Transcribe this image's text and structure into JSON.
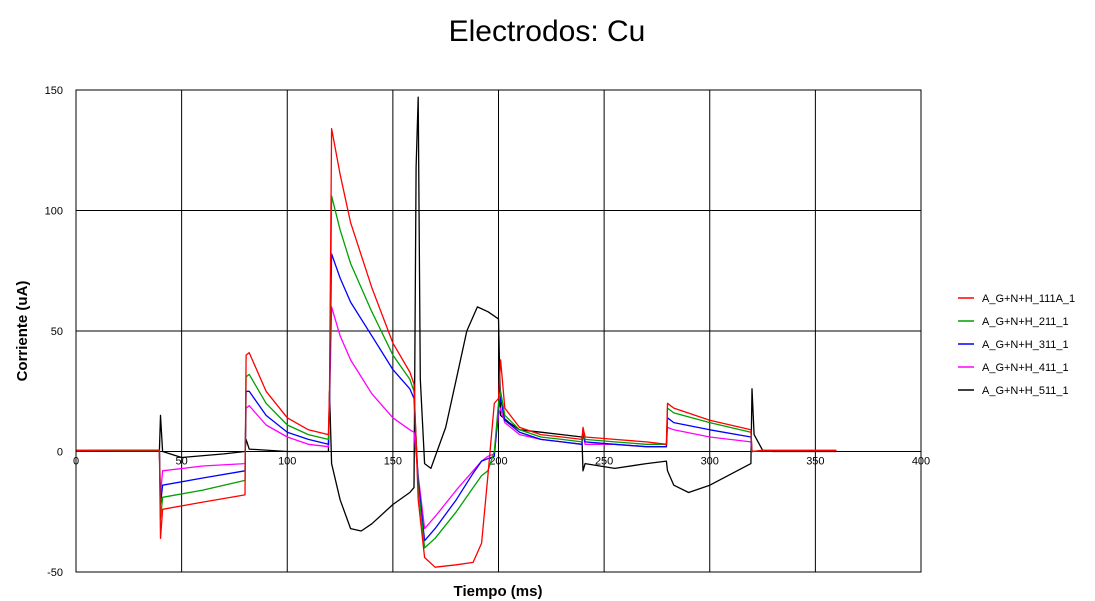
{
  "chart_data": {
    "type": "line",
    "title": "Electrodos: Cu",
    "xlabel": "Tiempo (ms)",
    "ylabel": "Corriente (uA)",
    "xlim": [
      0,
      400
    ],
    "ylim": [
      -50,
      150
    ],
    "xticks": [
      0,
      50,
      100,
      150,
      200,
      250,
      300,
      350,
      400
    ],
    "yticks": [
      -50,
      0,
      50,
      100,
      150
    ],
    "grid": true,
    "legend_position": "right",
    "series": [
      {
        "name": "A_G+N+H_111A_1",
        "color": "#ff0000",
        "points": [
          [
            0,
            0.5
          ],
          [
            20,
            0.6
          ],
          [
            39.5,
            0.6
          ],
          [
            40,
            -36
          ],
          [
            41,
            -24
          ],
          [
            60,
            -21
          ],
          [
            80,
            -18
          ],
          [
            80.5,
            40
          ],
          [
            82,
            41
          ],
          [
            90,
            25
          ],
          [
            100,
            14
          ],
          [
            110,
            9
          ],
          [
            119.5,
            7
          ],
          [
            120,
            25
          ],
          [
            121,
            134
          ],
          [
            125,
            115
          ],
          [
            130,
            95
          ],
          [
            140,
            68
          ],
          [
            150,
            45
          ],
          [
            158,
            33
          ],
          [
            160,
            28
          ],
          [
            162,
            -20
          ],
          [
            165,
            -44
          ],
          [
            170,
            -48
          ],
          [
            180,
            -47
          ],
          [
            188,
            -46
          ],
          [
            192,
            -38
          ],
          [
            195,
            -10
          ],
          [
            198,
            20
          ],
          [
            200,
            22
          ],
          [
            201,
            38
          ],
          [
            203,
            18
          ],
          [
            210,
            10
          ],
          [
            220,
            7
          ],
          [
            230,
            6
          ],
          [
            239.5,
            5
          ],
          [
            240,
            10
          ],
          [
            241,
            6
          ],
          [
            255,
            5
          ],
          [
            270,
            4
          ],
          [
            279.5,
            3
          ],
          [
            280,
            20
          ],
          [
            283,
            18
          ],
          [
            300,
            13
          ],
          [
            319.5,
            9
          ],
          [
            320,
            0
          ],
          [
            325,
            0.5
          ],
          [
            360,
            0.5
          ]
        ]
      },
      {
        "name": "A_G+N+H_211_1",
        "color": "#00a000",
        "points": [
          [
            0,
            0.4
          ],
          [
            20,
            0.5
          ],
          [
            39.5,
            0.5
          ],
          [
            40,
            -28
          ],
          [
            41,
            -19
          ],
          [
            60,
            -16
          ],
          [
            80,
            -12
          ],
          [
            80.5,
            31
          ],
          [
            82,
            32
          ],
          [
            90,
            20
          ],
          [
            100,
            11
          ],
          [
            110,
            7
          ],
          [
            119.5,
            5
          ],
          [
            120,
            22
          ],
          [
            121,
            106
          ],
          [
            125,
            92
          ],
          [
            130,
            78
          ],
          [
            140,
            58
          ],
          [
            150,
            40
          ],
          [
            158,
            30
          ],
          [
            160,
            25
          ],
          [
            162,
            -15
          ],
          [
            165,
            -40
          ],
          [
            170,
            -36
          ],
          [
            180,
            -25
          ],
          [
            188,
            -15
          ],
          [
            192,
            -10
          ],
          [
            195,
            -8
          ],
          [
            198,
            0
          ],
          [
            200,
            20
          ],
          [
            201,
            25
          ],
          [
            203,
            15
          ],
          [
            210,
            9
          ],
          [
            220,
            6
          ],
          [
            230,
            5
          ],
          [
            239.5,
            4
          ],
          [
            240,
            9
          ],
          [
            241,
            5
          ],
          [
            255,
            4
          ],
          [
            270,
            3
          ],
          [
            279.5,
            3
          ],
          [
            280,
            18
          ],
          [
            283,
            16
          ],
          [
            300,
            12
          ],
          [
            319.5,
            8
          ],
          [
            320,
            0
          ],
          [
            325,
            0.4
          ],
          [
            360,
            0.4
          ]
        ]
      },
      {
        "name": "A_G+N+H_311_1",
        "color": "#0000ff",
        "points": [
          [
            0,
            0.4
          ],
          [
            20,
            0.4
          ],
          [
            39.5,
            0.4
          ],
          [
            40,
            -22
          ],
          [
            41,
            -14
          ],
          [
            60,
            -11
          ],
          [
            80,
            -8
          ],
          [
            80.5,
            25
          ],
          [
            82,
            25
          ],
          [
            90,
            15
          ],
          [
            100,
            8
          ],
          [
            110,
            5
          ],
          [
            119.5,
            3
          ],
          [
            120,
            20
          ],
          [
            121,
            82
          ],
          [
            125,
            72
          ],
          [
            130,
            62
          ],
          [
            140,
            48
          ],
          [
            150,
            34
          ],
          [
            158,
            26
          ],
          [
            160,
            22
          ],
          [
            162,
            -12
          ],
          [
            165,
            -37
          ],
          [
            170,
            -32
          ],
          [
            180,
            -20
          ],
          [
            188,
            -9
          ],
          [
            192,
            -4
          ],
          [
            195,
            -3
          ],
          [
            198,
            -2
          ],
          [
            200,
            18
          ],
          [
            201,
            22
          ],
          [
            203,
            13
          ],
          [
            210,
            8
          ],
          [
            220,
            5
          ],
          [
            230,
            4
          ],
          [
            239.5,
            3
          ],
          [
            240,
            8
          ],
          [
            241,
            4
          ],
          [
            255,
            3
          ],
          [
            270,
            2
          ],
          [
            279.5,
            2
          ],
          [
            280,
            14
          ],
          [
            283,
            12
          ],
          [
            300,
            9
          ],
          [
            319.5,
            6
          ],
          [
            320,
            0
          ],
          [
            325,
            0.3
          ],
          [
            360,
            0.3
          ]
        ]
      },
      {
        "name": "A_G+N+H_411_1",
        "color": "#ff00ff",
        "points": [
          [
            0,
            0.3
          ],
          [
            20,
            0.3
          ],
          [
            39.5,
            0.3
          ],
          [
            40,
            -18
          ],
          [
            41,
            -8
          ],
          [
            60,
            -6
          ],
          [
            80,
            -5
          ],
          [
            80.5,
            18
          ],
          [
            82,
            19
          ],
          [
            90,
            11
          ],
          [
            100,
            6
          ],
          [
            110,
            3
          ],
          [
            119.5,
            2
          ],
          [
            120,
            18
          ],
          [
            121,
            60
          ],
          [
            125,
            48
          ],
          [
            130,
            38
          ],
          [
            140,
            24
          ],
          [
            150,
            14
          ],
          [
            158,
            9
          ],
          [
            160,
            8
          ],
          [
            162,
            -10
          ],
          [
            165,
            -32
          ],
          [
            170,
            -27
          ],
          [
            180,
            -16
          ],
          [
            188,
            -8
          ],
          [
            192,
            -4
          ],
          [
            195,
            -2
          ],
          [
            198,
            -1
          ],
          [
            200,
            15
          ],
          [
            201,
            18
          ],
          [
            203,
            12
          ],
          [
            210,
            7
          ],
          [
            220,
            5
          ],
          [
            230,
            4
          ],
          [
            239.5,
            3
          ],
          [
            240,
            7
          ],
          [
            241,
            3
          ],
          [
            255,
            3
          ],
          [
            270,
            2
          ],
          [
            279.5,
            2
          ],
          [
            280,
            10
          ],
          [
            283,
            9
          ],
          [
            300,
            6
          ],
          [
            319.5,
            4
          ],
          [
            320,
            0
          ],
          [
            325,
            0.3
          ],
          [
            360,
            0.3
          ]
        ]
      },
      {
        "name": "A_G+N+H_511_1",
        "color": "#000000",
        "points": [
          [
            0,
            0.2
          ],
          [
            20,
            0.3
          ],
          [
            39.5,
            0.3
          ],
          [
            40,
            15
          ],
          [
            41,
            0
          ],
          [
            50,
            -2.5
          ],
          [
            70,
            -1
          ],
          [
            80,
            0
          ],
          [
            80.5,
            5
          ],
          [
            82,
            1
          ],
          [
            100,
            0
          ],
          [
            119.5,
            0
          ],
          [
            120,
            25
          ],
          [
            121,
            -5
          ],
          [
            125,
            -20
          ],
          [
            130,
            -32
          ],
          [
            135,
            -33
          ],
          [
            140,
            -30
          ],
          [
            150,
            -22
          ],
          [
            158,
            -17
          ],
          [
            160,
            -15
          ],
          [
            161,
            118
          ],
          [
            162,
            147
          ],
          [
            163,
            30
          ],
          [
            165,
            -5
          ],
          [
            168,
            -7
          ],
          [
            175,
            10
          ],
          [
            180,
            30
          ],
          [
            185,
            50
          ],
          [
            190,
            60
          ],
          [
            195,
            58
          ],
          [
            200,
            55
          ],
          [
            201,
            15
          ],
          [
            205,
            12
          ],
          [
            210,
            9
          ],
          [
            220,
            8
          ],
          [
            230,
            7
          ],
          [
            239.5,
            6
          ],
          [
            240,
            -8
          ],
          [
            241,
            -5
          ],
          [
            255,
            -7
          ],
          [
            270,
            -5
          ],
          [
            279.5,
            -4
          ],
          [
            280,
            -8
          ],
          [
            283,
            -14
          ],
          [
            290,
            -17
          ],
          [
            300,
            -14
          ],
          [
            319.5,
            -5
          ],
          [
            320,
            26
          ],
          [
            321,
            7
          ],
          [
            325,
            0.5
          ],
          [
            330,
            0
          ],
          [
            360,
            0
          ]
        ]
      }
    ]
  }
}
